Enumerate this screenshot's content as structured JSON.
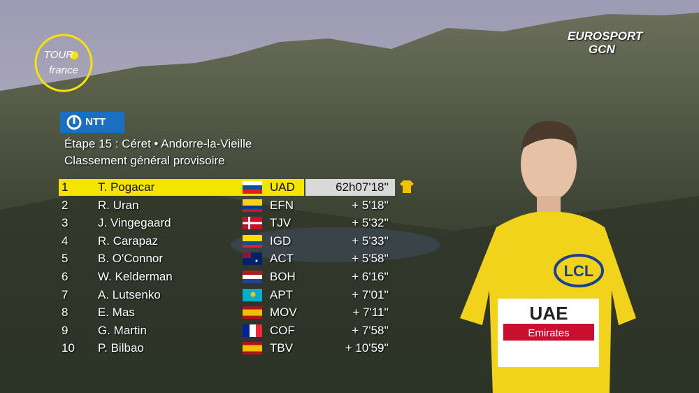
{
  "logo": {
    "tour_top": "TOUR",
    "tour_bottom": "france",
    "broadcaster": "EUROSPORT",
    "channel": "GCN"
  },
  "sponsor": "NTT",
  "header": {
    "stage": "Étape 15 : Céret • Andorre-la-Vieille",
    "subtitle": "Classement général provisoire"
  },
  "table": {
    "rows": [
      [
        "1",
        "T. Pogacar",
        "UAD",
        "62h07'18''"
      ],
      [
        "2",
        "R. Uran",
        "EFN",
        "+ 5'18''"
      ],
      [
        "3",
        "J. Vingegaard",
        "TJV",
        "+ 5'32''"
      ],
      [
        "4",
        "R. Carapaz",
        "IGD",
        "+ 5'33''"
      ],
      [
        "5",
        "B. O'Connor",
        "ACT",
        "+ 5'58''"
      ],
      [
        "6",
        "W. Kelderman",
        "BOH",
        "+ 6'16''"
      ],
      [
        "7",
        "A. Lutsenko",
        "APT",
        "+ 7'01''"
      ],
      [
        "8",
        "E. Mas",
        "MOV",
        "+ 7'11''"
      ],
      [
        "9",
        "G. Martin",
        "COF",
        "+ 7'58''"
      ],
      [
        "10",
        "P. Bilbao",
        "TBV",
        "+ 10'59''"
      ]
    ]
  },
  "jersey": {
    "sponsor": "LCL",
    "team": "UAE",
    "team_sub": "Emirates"
  }
}
